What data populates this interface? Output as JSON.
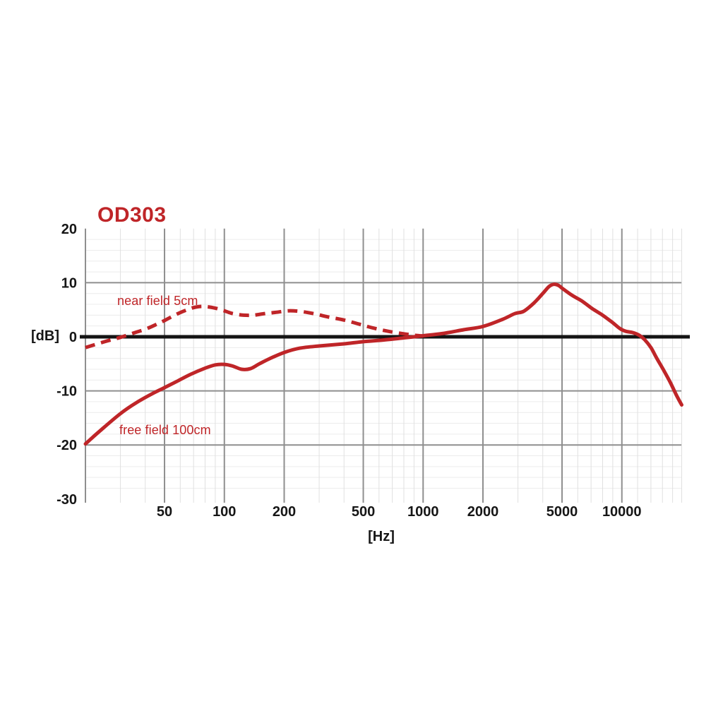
{
  "title": "OD303",
  "colors": {
    "accent_red": "#bf2528",
    "grid_major": "#8f8f8f",
    "grid_minor_h": "#ececec",
    "grid_minor_v": "#e0e0e0",
    "zero_line": "#141414",
    "tick_text": "#161616",
    "background": "#ffffff"
  },
  "chart_data": {
    "type": "line",
    "title": "OD303",
    "xlabel": "[Hz]",
    "ylabel": "[dB]",
    "x_scale": "log",
    "xlim": [
      20,
      20000
    ],
    "ylim": [
      -30,
      20
    ],
    "grid": "on",
    "y_ticks": [
      20,
      10,
      0,
      -10,
      -20,
      -30
    ],
    "x_ticks": [
      50,
      100,
      200,
      500,
      1000,
      2000,
      5000,
      10000
    ],
    "y_major_gridlines": [
      10,
      -10,
      -20
    ],
    "y_minor_step": 2,
    "zero_line_db": 0,
    "x_major_gridlines": [
      50,
      100,
      200,
      500,
      1000,
      2000,
      5000,
      10000
    ],
    "x_minor_gridlines": [
      30,
      40,
      60,
      70,
      80,
      90,
      300,
      400,
      600,
      700,
      800,
      900,
      3000,
      4000,
      6000,
      7000,
      8000,
      9000,
      12000,
      14000,
      16000,
      18000,
      20000
    ],
    "series": [
      {
        "name": "near field 5cm",
        "style": "dashed",
        "points": [
          [
            20,
            -2.0
          ],
          [
            25,
            -0.9
          ],
          [
            30,
            -0.1
          ],
          [
            35,
            0.7
          ],
          [
            40,
            1.4
          ],
          [
            45,
            2.2
          ],
          [
            50,
            3.0
          ],
          [
            57,
            4.1
          ],
          [
            65,
            5.0
          ],
          [
            72,
            5.5
          ],
          [
            80,
            5.6
          ],
          [
            90,
            5.3
          ],
          [
            100,
            4.8
          ],
          [
            110,
            4.3
          ],
          [
            125,
            4.0
          ],
          [
            140,
            4.0
          ],
          [
            160,
            4.3
          ],
          [
            180,
            4.5
          ],
          [
            210,
            4.8
          ],
          [
            240,
            4.7
          ],
          [
            280,
            4.3
          ],
          [
            330,
            3.7
          ],
          [
            400,
            3.1
          ],
          [
            470,
            2.4
          ],
          [
            550,
            1.7
          ],
          [
            650,
            1.1
          ],
          [
            780,
            0.6
          ],
          [
            900,
            0.3
          ],
          [
            1000,
            0.15
          ]
        ]
      },
      {
        "name": "free field 100cm",
        "style": "solid",
        "points": [
          [
            20,
            -19.8
          ],
          [
            24,
            -17.2
          ],
          [
            30,
            -14.2
          ],
          [
            36,
            -12.2
          ],
          [
            43,
            -10.6
          ],
          [
            50,
            -9.4
          ],
          [
            58,
            -8.2
          ],
          [
            68,
            -6.9
          ],
          [
            80,
            -5.8
          ],
          [
            90,
            -5.2
          ],
          [
            100,
            -5.1
          ],
          [
            110,
            -5.4
          ],
          [
            122,
            -6.0
          ],
          [
            135,
            -5.9
          ],
          [
            150,
            -5.0
          ],
          [
            170,
            -4.0
          ],
          [
            200,
            -2.9
          ],
          [
            240,
            -2.1
          ],
          [
            300,
            -1.7
          ],
          [
            400,
            -1.3
          ],
          [
            500,
            -0.9
          ],
          [
            630,
            -0.6
          ],
          [
            800,
            -0.2
          ],
          [
            900,
            0.0
          ],
          [
            1000,
            0.2
          ],
          [
            1250,
            0.6
          ],
          [
            1600,
            1.3
          ],
          [
            2000,
            1.9
          ],
          [
            2500,
            3.2
          ],
          [
            2900,
            4.3
          ],
          [
            3200,
            4.7
          ],
          [
            3600,
            6.2
          ],
          [
            4000,
            8.0
          ],
          [
            4300,
            9.3
          ],
          [
            4550,
            9.7
          ],
          [
            4800,
            9.5
          ],
          [
            5000,
            9.0
          ],
          [
            5600,
            7.7
          ],
          [
            6300,
            6.6
          ],
          [
            7100,
            5.2
          ],
          [
            8000,
            4.0
          ],
          [
            9000,
            2.6
          ],
          [
            9800,
            1.5
          ],
          [
            10500,
            1.0
          ],
          [
            11300,
            0.8
          ],
          [
            12200,
            0.3
          ],
          [
            13000,
            -0.5
          ],
          [
            14000,
            -2.0
          ],
          [
            15000,
            -4.0
          ],
          [
            16300,
            -6.3
          ],
          [
            17500,
            -8.4
          ],
          [
            18700,
            -10.6
          ],
          [
            20000,
            -12.6
          ]
        ]
      }
    ]
  }
}
